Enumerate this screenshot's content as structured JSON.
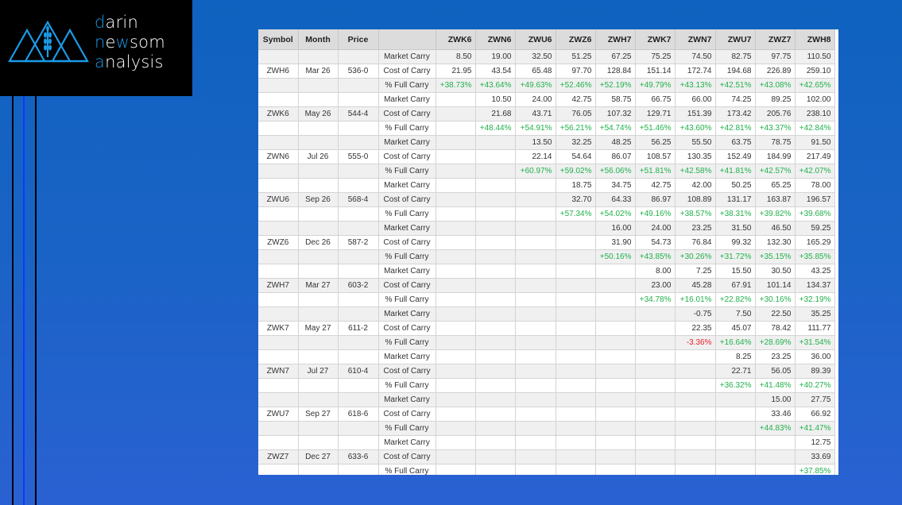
{
  "brand": {
    "line1": "darin",
    "line2": "newsom",
    "line3": "analysis",
    "accent": "#1a9be8"
  },
  "colors": {
    "positive": "#22b14c",
    "negative": "#e8202a",
    "header": "#dcdcdc",
    "alt_row": "#f0f0f0"
  },
  "table": {
    "headers": [
      "Symbol",
      "Month",
      "Price",
      ""
    ],
    "columns": [
      "ZWK6",
      "ZWN6",
      "ZWU6",
      "ZWZ6",
      "ZWH7",
      "ZWK7",
      "ZWN7",
      "ZWU7",
      "ZWZ7",
      "ZWH8"
    ],
    "row_labels": {
      "market": "Market Carry",
      "cost": "Cost of Carry",
      "pct": "% Full Carry"
    },
    "groups": [
      {
        "symbol": "ZWH6",
        "month": "Mar 26",
        "price": "536-0",
        "market": [
          "8.50",
          "19.00",
          "32.50",
          "51.25",
          "67.25",
          "75.25",
          "74.50",
          "82.75",
          "97.75",
          "110.50"
        ],
        "cost": [
          "21.95",
          "43.54",
          "65.48",
          "97.70",
          "128.84",
          "151.14",
          "172.74",
          "194.68",
          "226.89",
          "259.10"
        ],
        "pct": [
          "+38.73%",
          "+43.64%",
          "+49.63%",
          "+52.46%",
          "+52.19%",
          "+49.79%",
          "+43.13%",
          "+42.51%",
          "+43.08%",
          "+42.65%"
        ]
      },
      {
        "symbol": "ZWK6",
        "month": "May 26",
        "price": "544-4",
        "market": [
          "",
          "10.50",
          "24.00",
          "42.75",
          "58.75",
          "66.75",
          "66.00",
          "74.25",
          "89.25",
          "102.00"
        ],
        "cost": [
          "",
          "21.68",
          "43.71",
          "76.05",
          "107.32",
          "129.71",
          "151.39",
          "173.42",
          "205.76",
          "238.10"
        ],
        "pct": [
          "",
          "+48.44%",
          "+54.91%",
          "+56.21%",
          "+54.74%",
          "+51.46%",
          "+43.60%",
          "+42.81%",
          "+43.37%",
          "+42.84%"
        ]
      },
      {
        "symbol": "ZWN6",
        "month": "Jul 26",
        "price": "555-0",
        "market": [
          "",
          "",
          "13.50",
          "32.25",
          "48.25",
          "56.25",
          "55.50",
          "63.75",
          "78.75",
          "91.50"
        ],
        "cost": [
          "",
          "",
          "22.14",
          "54.64",
          "86.07",
          "108.57",
          "130.35",
          "152.49",
          "184.99",
          "217.49"
        ],
        "pct": [
          "",
          "",
          "+60.97%",
          "+59.02%",
          "+56.06%",
          "+51.81%",
          "+42.58%",
          "+41.81%",
          "+42.57%",
          "+42.07%"
        ]
      },
      {
        "symbol": "ZWU6",
        "month": "Sep 26",
        "price": "568-4",
        "market": [
          "",
          "",
          "",
          "18.75",
          "34.75",
          "42.75",
          "42.00",
          "50.25",
          "65.25",
          "78.00"
        ],
        "cost": [
          "",
          "",
          "",
          "32.70",
          "64.33",
          "86.97",
          "108.89",
          "131.17",
          "163.87",
          "196.57"
        ],
        "pct": [
          "",
          "",
          "",
          "+57.34%",
          "+54.02%",
          "+49.16%",
          "+38.57%",
          "+38.31%",
          "+39.82%",
          "+39.68%"
        ]
      },
      {
        "symbol": "ZWZ6",
        "month": "Dec 26",
        "price": "587-2",
        "market": [
          "",
          "",
          "",
          "",
          "16.00",
          "24.00",
          "23.25",
          "31.50",
          "46.50",
          "59.25"
        ],
        "cost": [
          "",
          "",
          "",
          "",
          "31.90",
          "54.73",
          "76.84",
          "99.32",
          "132.30",
          "165.29"
        ],
        "pct": [
          "",
          "",
          "",
          "",
          "+50.16%",
          "+43.85%",
          "+30.26%",
          "+31.72%",
          "+35.15%",
          "+35.85%"
        ]
      },
      {
        "symbol": "ZWH7",
        "month": "Mar 27",
        "price": "603-2",
        "market": [
          "",
          "",
          "",
          "",
          "",
          "8.00",
          "7.25",
          "15.50",
          "30.50",
          "43.25"
        ],
        "cost": [
          "",
          "",
          "",
          "",
          "",
          "23.00",
          "45.28",
          "67.91",
          "101.14",
          "134.37"
        ],
        "pct": [
          "",
          "",
          "",
          "",
          "",
          "+34.78%",
          "+16.01%",
          "+22.82%",
          "+30.16%",
          "+32.19%"
        ]
      },
      {
        "symbol": "ZWK7",
        "month": "May 27",
        "price": "611-2",
        "market": [
          "",
          "",
          "",
          "",
          "",
          "",
          "-0.75",
          "7.50",
          "22.50",
          "35.25"
        ],
        "cost": [
          "",
          "",
          "",
          "",
          "",
          "",
          "22.35",
          "45.07",
          "78.42",
          "111.77"
        ],
        "pct": [
          "",
          "",
          "",
          "",
          "",
          "",
          "-3.36%",
          "+16.64%",
          "+28.69%",
          "+31.54%"
        ]
      },
      {
        "symbol": "ZWN7",
        "month": "Jul 27",
        "price": "610-4",
        "market": [
          "",
          "",
          "",
          "",
          "",
          "",
          "",
          "8.25",
          "23.25",
          "36.00"
        ],
        "cost": [
          "",
          "",
          "",
          "",
          "",
          "",
          "",
          "22.71",
          "56.05",
          "89.39"
        ],
        "pct": [
          "",
          "",
          "",
          "",
          "",
          "",
          "",
          "+36.32%",
          "+41.48%",
          "+40.27%"
        ]
      },
      {
        "symbol": "ZWU7",
        "month": "Sep 27",
        "price": "618-6",
        "market": [
          "",
          "",
          "",
          "",
          "",
          "",
          "",
          "",
          "15.00",
          "27.75"
        ],
        "cost": [
          "",
          "",
          "",
          "",
          "",
          "",
          "",
          "",
          "33.46",
          "66.92"
        ],
        "pct": [
          "",
          "",
          "",
          "",
          "",
          "",
          "",
          "",
          "+44.83%",
          "+41.47%"
        ]
      },
      {
        "symbol": "ZWZ7",
        "month": "Dec 27",
        "price": "633-6",
        "market": [
          "",
          "",
          "",
          "",
          "",
          "",
          "",
          "",
          "",
          "12.75"
        ],
        "cost": [
          "",
          "",
          "",
          "",
          "",
          "",
          "",
          "",
          "",
          "33.69"
        ],
        "pct": [
          "",
          "",
          "",
          "",
          "",
          "",
          "",
          "",
          "",
          "+37.85%"
        ]
      }
    ]
  }
}
